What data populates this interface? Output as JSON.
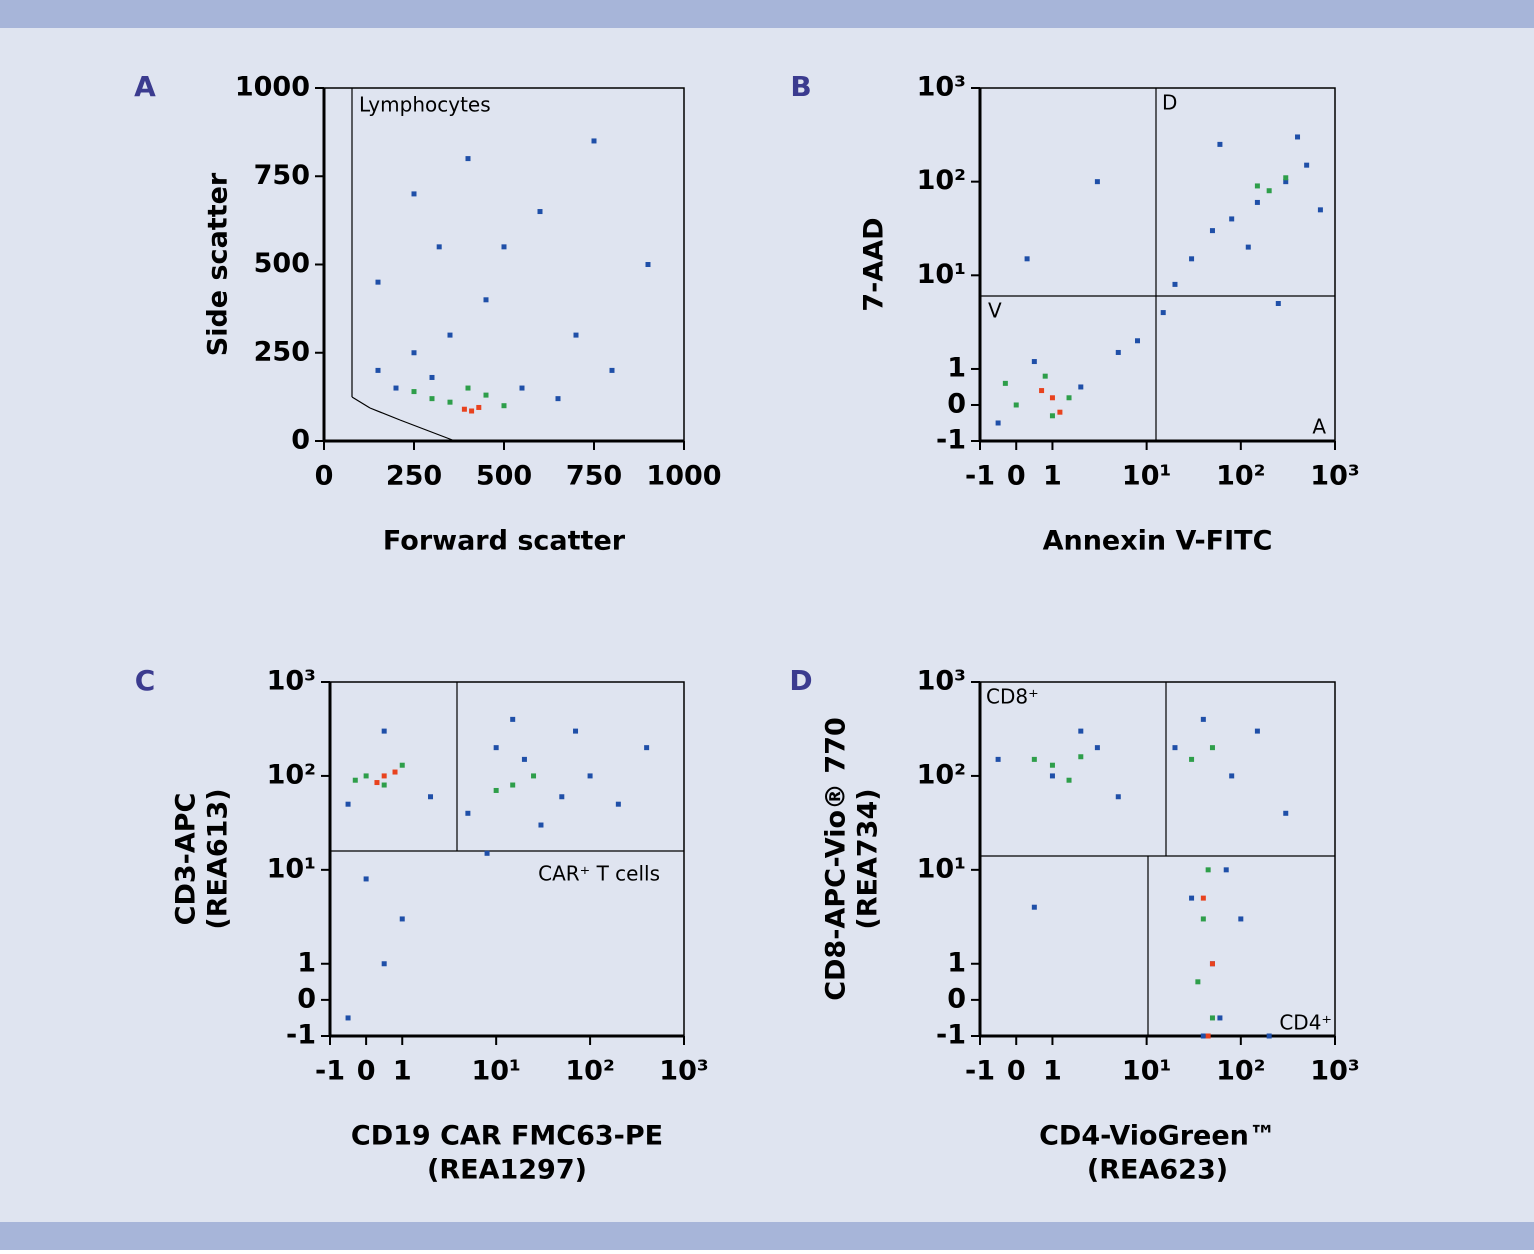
{
  "chart_data": [
    {
      "type": "scatter",
      "panel": "A",
      "xlabel": [
        "Forward scatter"
      ],
      "ylabel": [
        "Side scatter"
      ],
      "scale": "linear",
      "xlim": [
        0,
        1000
      ],
      "ylim": [
        0,
        1000
      ],
      "xticks": [
        0,
        250,
        500,
        750,
        1000
      ],
      "yticks": [
        0,
        250,
        500,
        750,
        1000
      ],
      "gate_labels": [
        "Lymphocytes"
      ],
      "series": [
        {
          "color": "#1f4fa8",
          "x": [
            150,
            200,
            250,
            300,
            350,
            450,
            500,
            600,
            700,
            800,
            900,
            550,
            650,
            250,
            400,
            150,
            750,
            320
          ],
          "y": [
            200,
            150,
            250,
            180,
            300,
            400,
            550,
            650,
            300,
            200,
            500,
            150,
            120,
            700,
            800,
            450,
            850,
            550
          ]
        },
        {
          "color": "#2e9e4a",
          "x": [
            300,
            350,
            450,
            500,
            250,
            400
          ],
          "y": [
            120,
            110,
            130,
            100,
            140,
            150
          ]
        },
        {
          "color": "#e8421e",
          "x": [
            390,
            410,
            430
          ],
          "y": [
            90,
            85,
            95
          ]
        }
      ]
    },
    {
      "type": "scatter",
      "panel": "B",
      "xlabel": [
        "Annexin V-FITC"
      ],
      "ylabel": [
        "7-AAD"
      ],
      "scale": "biexponential",
      "xlim": [
        -1,
        1000
      ],
      "ylim": [
        -1,
        1000
      ],
      "xticks": [
        -1,
        0,
        1,
        {
          "value": 10,
          "label": "10¹"
        },
        {
          "value": 100,
          "label": "10²"
        },
        {
          "value": 1000,
          "label": "10³"
        }
      ],
      "yticks": [
        -1,
        0,
        1,
        {
          "value": 10,
          "label": "10¹"
        },
        {
          "value": 100,
          "label": "10²"
        },
        {
          "value": 1000,
          "label": "10³"
        }
      ],
      "gate_labels": [
        "V",
        "D",
        "A"
      ],
      "series": [
        {
          "color": "#1f4fa8",
          "x": [
            -0.5,
            0.5,
            2,
            5,
            8,
            15,
            20,
            30,
            50,
            80,
            150,
            300,
            500,
            700,
            120,
            250,
            0.3,
            3,
            60,
            400
          ],
          "y": [
            -0.5,
            1.2,
            0.5,
            1.5,
            2,
            4,
            8,
            15,
            30,
            40,
            60,
            100,
            150,
            50,
            20,
            5,
            15,
            100,
            250,
            300
          ]
        },
        {
          "color": "#2e9e4a",
          "x": [
            0,
            0.8,
            1,
            -0.3,
            1.5,
            200,
            300,
            150
          ],
          "y": [
            0,
            0.8,
            -0.3,
            0.6,
            0.2,
            80,
            110,
            90
          ]
        },
        {
          "color": "#e8421e",
          "x": [
            1,
            1.2,
            0.7
          ],
          "y": [
            0.2,
            -0.2,
            0.4
          ]
        }
      ]
    },
    {
      "type": "scatter",
      "panel": "C",
      "xlabel": [
        "CD19 CAR FMC63-PE",
        "(REA1297)"
      ],
      "ylabel": [
        "CD3-APC",
        "(REA613)"
      ],
      "scale": "biexponential",
      "xlim": [
        -1,
        1000
      ],
      "ylim": [
        -1,
        1000
      ],
      "xticks": [
        -1,
        0,
        1,
        {
          "value": 10,
          "label": "10¹"
        },
        {
          "value": 100,
          "label": "10²"
        },
        {
          "value": 1000,
          "label": "10³"
        }
      ],
      "yticks": [
        -1,
        0,
        1,
        {
          "value": 10,
          "label": "10¹"
        },
        {
          "value": 100,
          "label": "10²"
        },
        {
          "value": 1000,
          "label": "10³"
        }
      ],
      "gate_labels": [
        "CAR⁺ T cells"
      ],
      "series": [
        {
          "color": "#1f4fa8",
          "x": [
            -0.5,
            0.5,
            2,
            5,
            10,
            20,
            50,
            100,
            200,
            400,
            30,
            0,
            0.5,
            -0.5,
            1,
            15,
            70,
            8
          ],
          "y": [
            50,
            300,
            60,
            40,
            200,
            150,
            60,
            100,
            50,
            200,
            30,
            8,
            1,
            -0.5,
            3,
            400,
            300,
            15
          ]
        },
        {
          "color": "#2e9e4a",
          "x": [
            0,
            0.5,
            1,
            15,
            25,
            -0.3,
            10
          ],
          "y": [
            100,
            80,
            130,
            80,
            100,
            90,
            70
          ]
        },
        {
          "color": "#e8421e",
          "x": [
            0.5,
            0.8,
            0.3
          ],
          "y": [
            100,
            110,
            85
          ]
        }
      ]
    },
    {
      "type": "scatter",
      "panel": "D",
      "xlabel": [
        "CD4-VioGreen™",
        "(REA623)"
      ],
      "ylabel": [
        "CD8-APC-Vio® 770",
        "(REA734)"
      ],
      "scale": "biexponential",
      "xlim": [
        -1,
        1000
      ],
      "ylim": [
        -1,
        1000
      ],
      "xticks": [
        -1,
        0,
        1,
        {
          "value": 10,
          "label": "10¹"
        },
        {
          "value": 100,
          "label": "10²"
        },
        {
          "value": 1000,
          "label": "10³"
        }
      ],
      "yticks": [
        -1,
        0,
        1,
        {
          "value": 10,
          "label": "10¹"
        },
        {
          "value": 100,
          "label": "10²"
        },
        {
          "value": 1000,
          "label": "10³"
        }
      ],
      "gate_labels": [
        "CD8⁺",
        "CD4⁺"
      ],
      "series": [
        {
          "color": "#1f4fa8",
          "x": [
            -0.5,
            1,
            3,
            5,
            2,
            20,
            40,
            80,
            150,
            30,
            50,
            60,
            70,
            40,
            200,
            100,
            0.5,
            300
          ],
          "y": [
            150,
            100,
            200,
            60,
            300,
            200,
            400,
            100,
            300,
            5,
            1,
            -0.5,
            10,
            -1,
            -1,
            3,
            4,
            40
          ]
        },
        {
          "color": "#2e9e4a",
          "x": [
            0.5,
            1,
            2,
            1.5,
            30,
            50,
            40,
            45,
            35,
            50
          ],
          "y": [
            150,
            130,
            160,
            90,
            150,
            200,
            3,
            10,
            0.5,
            -0.5
          ]
        },
        {
          "color": "#e8421e",
          "x": [
            45,
            40,
            50
          ],
          "y": [
            -1,
            5,
            1
          ]
        }
      ]
    }
  ]
}
